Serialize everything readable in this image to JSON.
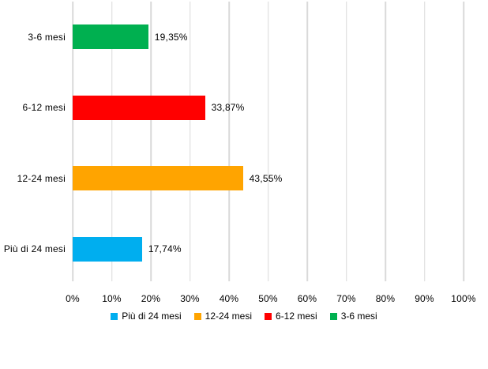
{
  "chart_data": {
    "type": "bar",
    "orientation": "horizontal",
    "categories": [
      "3-6 mesi",
      "6-12 mesi",
      "12-24 mesi",
      "Più di 24 mesi"
    ],
    "values": [
      19.35,
      33.87,
      43.55,
      17.74
    ],
    "value_labels": [
      "19,35%",
      "33,87%",
      "43,55%",
      "17,74%"
    ],
    "bar_colors": [
      "#00B050",
      "#FF0000",
      "#FFA400",
      "#00AEEF"
    ],
    "xlim": [
      0,
      100
    ],
    "x_ticks": [
      "0%",
      "10%",
      "20%",
      "30%",
      "40%",
      "50%",
      "60%",
      "70%",
      "80%",
      "90%",
      "100%"
    ],
    "grid": "vertical-only",
    "gridline_color": "#D9D9D9",
    "background_color": "#FFFFFF",
    "text_color": "#000000",
    "legend": {
      "position": "bottom-center",
      "items": [
        {
          "label": "Più di 24 mesi",
          "color": "#00AEEF"
        },
        {
          "label": "12-24 mesi",
          "color": "#FFA400"
        },
        {
          "label": "6-12 mesi",
          "color": "#FF0000"
        },
        {
          "label": "3-6 mesi",
          "color": "#00B050"
        }
      ]
    }
  }
}
